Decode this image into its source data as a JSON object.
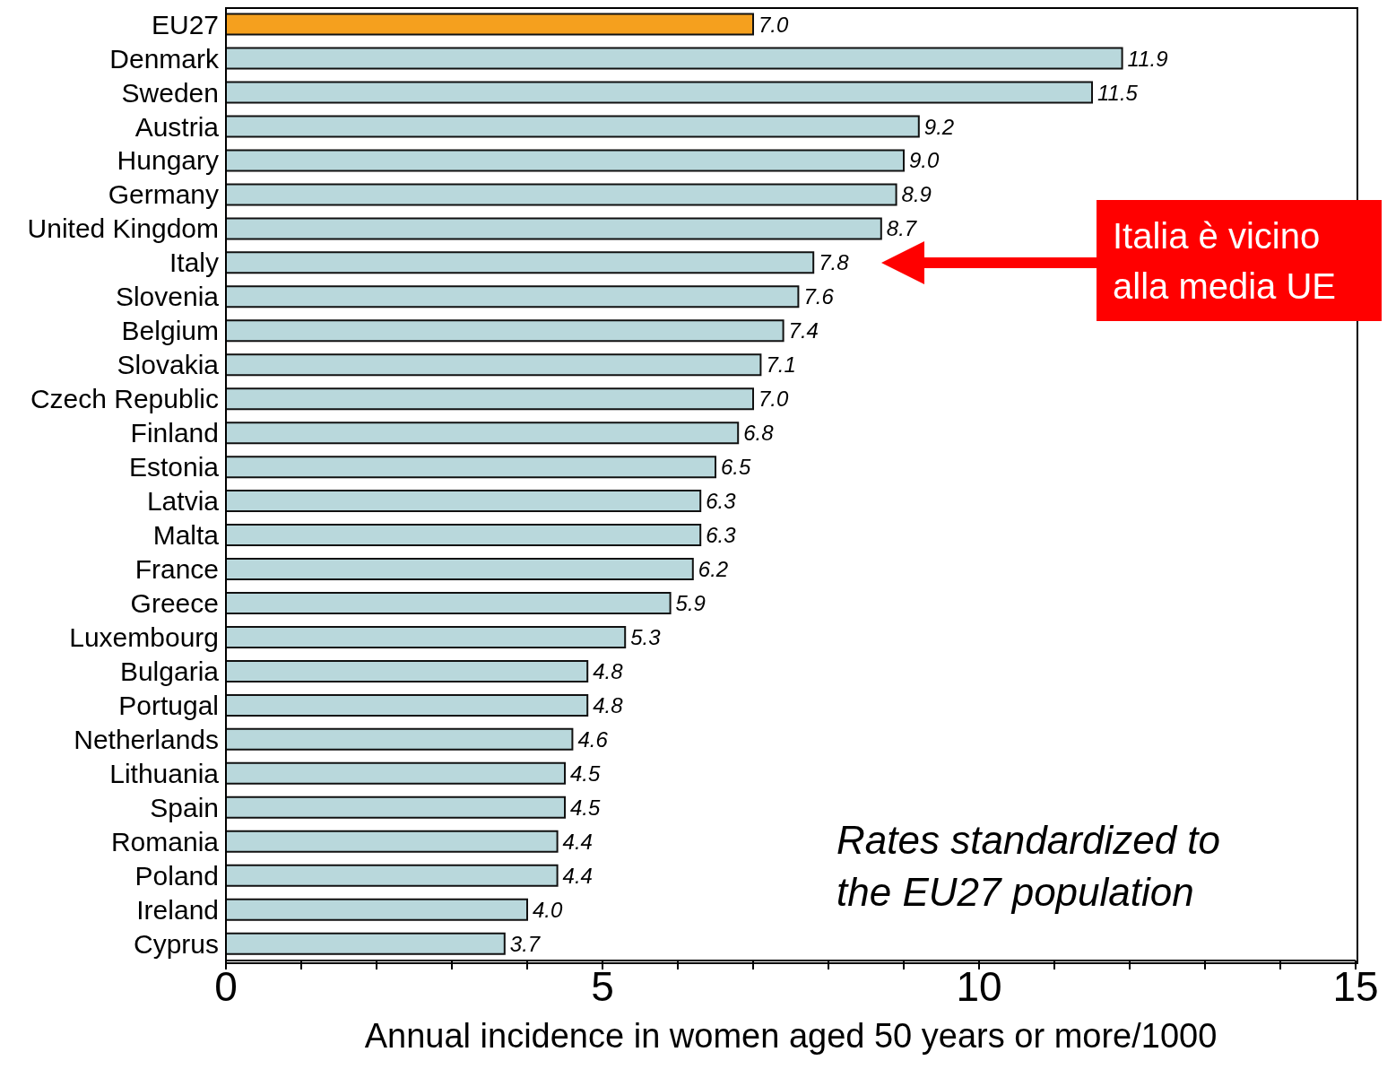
{
  "chart_data": {
    "type": "bar",
    "orientation": "horizontal",
    "xlabel": "Annual incidence in women aged 50 years or more/1000",
    "categories": [
      "EU27",
      "Denmark",
      "Sweden",
      "Austria",
      "Hungary",
      "Germany",
      "United Kingdom",
      "Italy",
      "Slovenia",
      "Belgium",
      "Slovakia",
      "Czech Republic",
      "Finland",
      "Estonia",
      "Latvia",
      "Malta",
      "France",
      "Greece",
      "Luxembourg",
      "Bulgaria",
      "Portugal",
      "Netherlands",
      "Lithuania",
      "Spain",
      "Romania",
      "Poland",
      "Ireland",
      "Cyprus"
    ],
    "values": [
      7.0,
      11.9,
      11.5,
      9.2,
      9.0,
      8.9,
      8.7,
      7.8,
      7.6,
      7.4,
      7.1,
      7.0,
      6.8,
      6.5,
      6.3,
      6.3,
      6.2,
      5.9,
      5.3,
      4.8,
      4.8,
      4.6,
      4.5,
      4.5,
      4.4,
      4.4,
      4.0,
      3.7
    ],
    "colors": [
      "#f5a01e",
      "#b9d8dc",
      "#b9d8dc",
      "#b9d8dc",
      "#b9d8dc",
      "#b9d8dc",
      "#b9d8dc",
      "#b9d8dc",
      "#b9d8dc",
      "#b9d8dc",
      "#b9d8dc",
      "#b9d8dc",
      "#b9d8dc",
      "#b9d8dc",
      "#b9d8dc",
      "#b9d8dc",
      "#b9d8dc",
      "#b9d8dc",
      "#b9d8dc",
      "#b9d8dc",
      "#b9d8dc",
      "#b9d8dc",
      "#b9d8dc",
      "#b9d8dc",
      "#b9d8dc",
      "#b9d8dc",
      "#b9d8dc",
      "#b9d8dc"
    ],
    "value_labels": [
      "7.0",
      "11.9",
      "11.5",
      "9.2",
      "9.0",
      "8.9",
      "8.7",
      "7.8",
      "7.6",
      "7.4",
      "7.1",
      "7.0",
      "6.8",
      "6.5",
      "6.3",
      "6.3",
      "6.2",
      "5.9",
      "5.3",
      "4.8",
      "4.8",
      "4.6",
      "4.5",
      "4.5",
      "4.4",
      "4.4",
      "4.0",
      "3.7"
    ],
    "xlim": [
      0,
      15
    ],
    "xticks": [
      0,
      {
        "value": 1,
        "label": null
      },
      {
        "value": 2,
        "label": null
      },
      {
        "value": 3,
        "label": null
      },
      {
        "value": 4,
        "label": null
      },
      5,
      {
        "value": 6,
        "label": null
      },
      {
        "value": 7,
        "label": null
      },
      {
        "value": 8,
        "label": null
      },
      {
        "value": 9,
        "label": null
      },
      10,
      {
        "value": 11,
        "label": null
      },
      {
        "value": 12,
        "label": null
      },
      {
        "value": 13,
        "label": null
      },
      {
        "value": 14,
        "label": null
      },
      15
    ],
    "annotations": [
      "Italia è vicino alla media UE",
      "Rates standardized to the EU27 population"
    ]
  }
}
